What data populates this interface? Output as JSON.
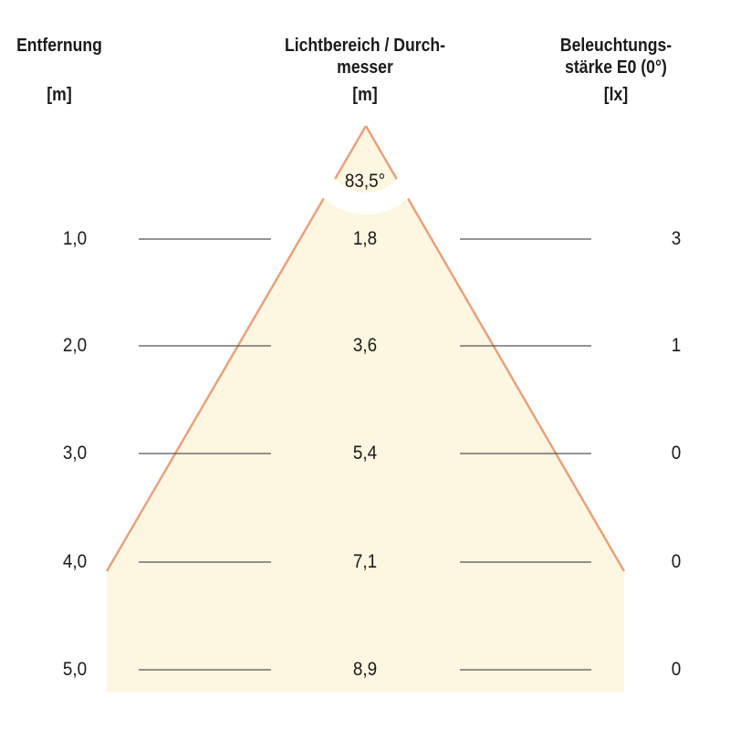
{
  "headers": {
    "distance": {
      "line1": "Entfernung",
      "unit": "[m]"
    },
    "diameter": {
      "line1": "Lichtbereich / Durch-",
      "line2": "messer",
      "unit": "[m]"
    },
    "illuminance": {
      "line1": "Beleuchtungs-",
      "line2": "stärke E0 (0°)",
      "unit": "[lx]"
    }
  },
  "beam_angle": "83,5°",
  "rows": [
    {
      "distance": "1,0",
      "diameter": "1,8",
      "illuminance": "3"
    },
    {
      "distance": "2,0",
      "diameter": "3,6",
      "illuminance": "1"
    },
    {
      "distance": "3,0",
      "diameter": "5,4",
      "illuminance": "0"
    },
    {
      "distance": "4,0",
      "diameter": "7,1",
      "illuminance": "0"
    },
    {
      "distance": "5,0",
      "diameter": "8,9",
      "illuminance": "0"
    }
  ],
  "colors": {
    "cone_fill": "#fdf6e0",
    "cone_edge": "#e6a27e",
    "line": "#555555"
  }
}
